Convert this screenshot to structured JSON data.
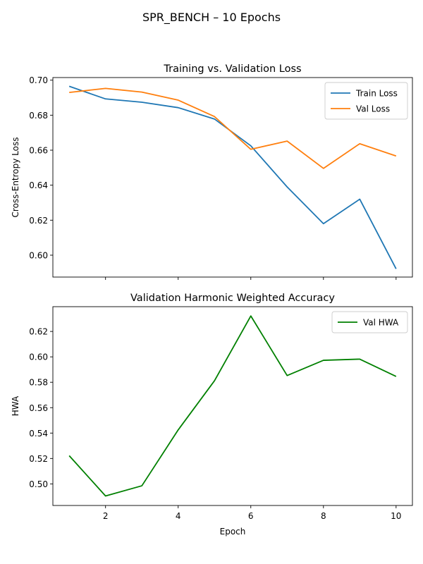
{
  "suptitle": "SPR_BENCH – 10 Epochs",
  "chart_data": [
    {
      "type": "line",
      "title": "Training vs. Validation Loss",
      "xlabel": "",
      "ylabel": "Cross-Entropy Loss",
      "x": [
        1,
        2,
        3,
        4,
        5,
        6,
        7,
        8,
        9,
        10
      ],
      "xlim": [
        0.55,
        10.45
      ],
      "ylim": [
        0.5875,
        0.7015
      ],
      "xticks": [],
      "yticks": [
        0.6,
        0.62,
        0.64,
        0.66,
        0.68,
        0.7
      ],
      "ytick_labels": [
        "0.60",
        "0.62",
        "0.64",
        "0.66",
        "0.68",
        "0.70"
      ],
      "grid": false,
      "legend": "top-right",
      "series": [
        {
          "name": "Train Loss",
          "color": "#1f77b4",
          "values": [
            0.6965,
            0.6893,
            0.6874,
            0.6843,
            0.6778,
            0.6625,
            0.639,
            0.618,
            0.632,
            0.5922
          ]
        },
        {
          "name": "Val Loss",
          "color": "#ff7f0e",
          "values": [
            0.693,
            0.6953,
            0.6932,
            0.6886,
            0.6792,
            0.6605,
            0.6652,
            0.6496,
            0.6637,
            0.6567
          ]
        }
      ]
    },
    {
      "type": "line",
      "title": "Validation Harmonic Weighted Accuracy",
      "xlabel": "Epoch",
      "ylabel": "HWA",
      "x": [
        1,
        2,
        3,
        4,
        5,
        6,
        7,
        8,
        9,
        10
      ],
      "xlim": [
        0.55,
        10.45
      ],
      "ylim": [
        0.483,
        0.6395
      ],
      "xticks": [
        2,
        4,
        6,
        8,
        10
      ],
      "xtick_labels": [
        "2",
        "4",
        "6",
        "8",
        "10"
      ],
      "yticks": [
        0.5,
        0.52,
        0.54,
        0.56,
        0.58,
        0.6,
        0.62
      ],
      "ytick_labels": [
        "0.50",
        "0.52",
        "0.54",
        "0.56",
        "0.58",
        "0.60",
        "0.62"
      ],
      "grid": false,
      "legend": "top-right",
      "series": [
        {
          "name": "Val HWA",
          "color": "#008000",
          "values": [
            0.5222,
            0.4905,
            0.4985,
            0.5425,
            0.5812,
            0.6322,
            0.5853,
            0.5973,
            0.5982,
            0.5846
          ]
        }
      ]
    }
  ]
}
